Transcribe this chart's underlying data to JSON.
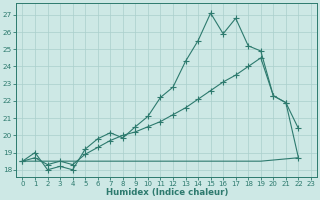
{
  "background_color": "#cde8e5",
  "grid_color": "#aacfcc",
  "line_color": "#2d7a6e",
  "xlabel": "Humidex (Indice chaleur)",
  "xlim": [
    -0.5,
    23.5
  ],
  "ylim": [
    17.6,
    27.7
  ],
  "yticks": [
    18,
    19,
    20,
    21,
    22,
    23,
    24,
    25,
    26,
    27
  ],
  "xticks": [
    0,
    1,
    2,
    3,
    4,
    5,
    6,
    7,
    8,
    9,
    10,
    11,
    12,
    13,
    14,
    15,
    16,
    17,
    18,
    19,
    20,
    21,
    22,
    23
  ],
  "upper_x": [
    0,
    1,
    2,
    3,
    4,
    5,
    6,
    7,
    8,
    9,
    10,
    11,
    12,
    13,
    14,
    15,
    16,
    17,
    18,
    19,
    20,
    21,
    22
  ],
  "upper_y": [
    18.5,
    19.0,
    18.0,
    18.2,
    18.0,
    19.2,
    19.8,
    20.15,
    19.85,
    20.5,
    21.1,
    22.2,
    22.8,
    24.3,
    25.5,
    27.1,
    25.9,
    26.8,
    25.2,
    24.9,
    22.3,
    21.9,
    20.4
  ],
  "middle_x": [
    0,
    1,
    2,
    3,
    4,
    5,
    6,
    7,
    8,
    9,
    10,
    11,
    12,
    13,
    14,
    15,
    16,
    17,
    18,
    19,
    20,
    21,
    22
  ],
  "middle_y": [
    18.5,
    18.7,
    18.3,
    18.5,
    18.3,
    18.9,
    19.3,
    19.7,
    20.0,
    20.2,
    20.5,
    20.8,
    21.2,
    21.6,
    22.1,
    22.6,
    23.1,
    23.5,
    24.0,
    24.5,
    22.3,
    21.9,
    18.7
  ],
  "flat_x": [
    0,
    2,
    4,
    10,
    15,
    19,
    22
  ],
  "flat_y": [
    18.5,
    18.5,
    18.5,
    18.5,
    18.5,
    18.5,
    18.7
  ]
}
